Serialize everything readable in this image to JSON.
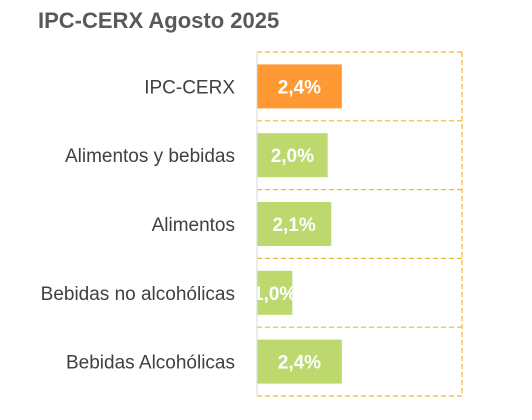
{
  "chart_data": {
    "type": "bar",
    "orientation": "horizontal",
    "title": "IPC-CERX Agosto 2025",
    "categories": [
      "IPC-CERX",
      "Alimentos y bebidas",
      "Alimentos",
      "Bebidas no alcohólicas",
      "Bebidas Alcohólicas"
    ],
    "values": [
      2.4,
      2.0,
      2.1,
      1.0,
      2.4
    ],
    "data_labels": [
      "2,4%",
      "2,0%",
      "2,1%",
      "1,0%",
      "2,4%"
    ],
    "xlim": [
      0,
      5.8
    ],
    "grid": true,
    "legend": "none",
    "colors": {
      "highlight": "#FF9933",
      "bar": "#BDD96E",
      "label": "#ffffff",
      "category_text": "#404040",
      "title": "#595959",
      "grid": "#F2B632"
    },
    "highlight_index": 0
  }
}
